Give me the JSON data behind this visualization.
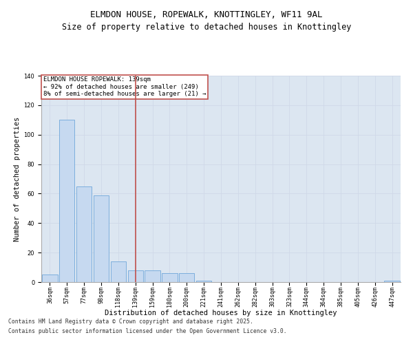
{
  "title1": "ELMDON HOUSE, ROPEWALK, KNOTTINGLEY, WF11 9AL",
  "title2": "Size of property relative to detached houses in Knottingley",
  "xlabel": "Distribution of detached houses by size in Knottingley",
  "ylabel": "Number of detached properties",
  "categories": [
    "36sqm",
    "57sqm",
    "77sqm",
    "98sqm",
    "118sqm",
    "139sqm",
    "159sqm",
    "180sqm",
    "200sqm",
    "221sqm",
    "241sqm",
    "262sqm",
    "282sqm",
    "303sqm",
    "323sqm",
    "344sqm",
    "364sqm",
    "385sqm",
    "405sqm",
    "426sqm",
    "447sqm"
  ],
  "values": [
    5,
    110,
    65,
    59,
    14,
    8,
    8,
    6,
    6,
    1,
    0,
    0,
    0,
    0,
    0,
    0,
    0,
    0,
    0,
    0,
    1
  ],
  "bar_color": "#c6d9f0",
  "bar_edge_color": "#5b9bd5",
  "vline_x_index": 5,
  "vline_color": "#c0504d",
  "annotation_text": "ELMDON HOUSE ROPEWALK: 139sqm\n← 92% of detached houses are smaller (249)\n8% of semi-detached houses are larger (21) →",
  "annotation_box_color": "#ffffff",
  "annotation_box_edge_color": "#c0504d",
  "ylim": [
    0,
    140
  ],
  "yticks": [
    0,
    20,
    40,
    60,
    80,
    100,
    120,
    140
  ],
  "grid_color": "#d0d8e8",
  "background_color": "#dce6f1",
  "footnote1": "Contains HM Land Registry data © Crown copyright and database right 2025.",
  "footnote2": "Contains public sector information licensed under the Open Government Licence v3.0.",
  "title1_fontsize": 9,
  "title2_fontsize": 8.5,
  "tick_fontsize": 6,
  "xlabel_fontsize": 7.5,
  "ylabel_fontsize": 7.5,
  "annotation_fontsize": 6.5,
  "footnote_fontsize": 5.8
}
